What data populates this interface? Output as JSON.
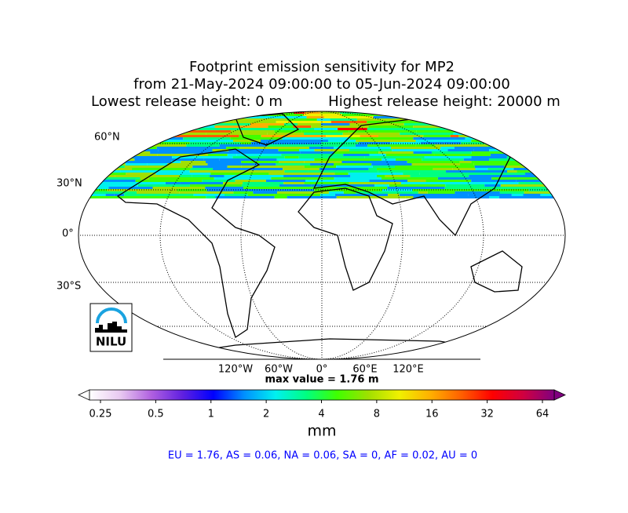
{
  "title": {
    "line1": "Footprint emission sensitivity for MP2",
    "line2": "from 21-May-2024 09:00:00 to 05-Jun-2024 09:00:00",
    "line3_left": "Lowest release height: 0 m",
    "line3_right": "Highest release height: 20000 m"
  },
  "map": {
    "lat_labels": [
      "60°N",
      "30°N",
      "0°",
      "30°S"
    ],
    "lon_labels": [
      "120°W",
      "60°W",
      "0°",
      "60°E",
      "120°E"
    ],
    "max_value": "max value = 1.76 m",
    "logo": "NILU"
  },
  "colorbar": {
    "ticks": [
      0.25,
      0.5,
      1,
      2,
      4,
      8,
      16,
      32,
      64
    ],
    "log": true,
    "label": "mm",
    "colors": [
      "#ffffff",
      "#e8c8f0",
      "#b060e0",
      "#6020e0",
      "#0000ff",
      "#0090ff",
      "#00f0f0",
      "#00ff80",
      "#40ff00",
      "#a0e000",
      "#f0f000",
      "#ffb000",
      "#ff6000",
      "#ff0000",
      "#d00040",
      "#800080"
    ]
  },
  "summary": "EU = 1.76,  AS = 0.06,  NA = 0.06,  SA = 0,  AF = 0.02,  AU = 0"
}
